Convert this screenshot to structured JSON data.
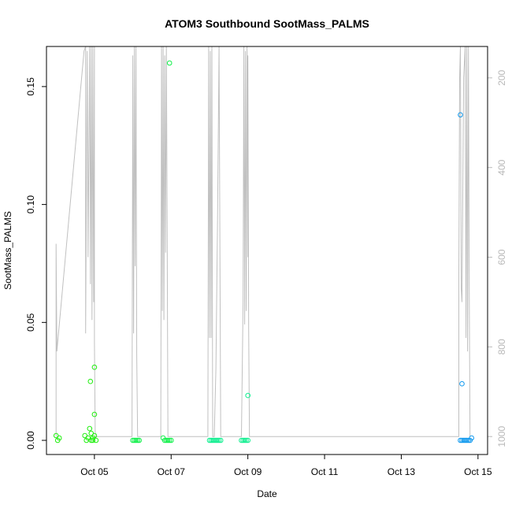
{
  "chart_data": {
    "type": "scatter",
    "title": "ATOM3 Southbound SootMass_PALMS",
    "xlabel": "Date",
    "ylabel": "SootMass_PALMS",
    "xlim": [
      "2017-10-03T18:00",
      "2017-10-15T06:00"
    ],
    "ylim": [
      -0.006,
      0.167
    ],
    "y_ticks": [
      0.0,
      0.05,
      0.1,
      0.15
    ],
    "y_tick_labels": [
      "0.00",
      "0.05",
      "0.10",
      "0.15"
    ],
    "x_ticks": [
      "2017-10-05",
      "2017-10-07",
      "2017-10-09",
      "2017-10-11",
      "2017-10-13",
      "2017-10-15"
    ],
    "x_tick_labels": [
      "Oct 05",
      "Oct 07",
      "Oct 09",
      "Oct 11",
      "Oct 13",
      "Oct 15"
    ],
    "right_axis": {
      "ticks": [
        200,
        400,
        600,
        800,
        1000
      ],
      "lim_top": 130,
      "lim_bottom": 1040,
      "color": "#bbbbbb"
    },
    "grid": false,
    "legend": "none",
    "series": [
      {
        "color": "#22ee11",
        "points": [
          [
            "2017-10-04T00:00",
            0.002
          ],
          [
            "2017-10-04T01:00",
            0.0
          ],
          [
            "2017-10-04T02:00",
            0.001
          ],
          [
            "2017-10-04T18:00",
            0.002
          ],
          [
            "2017-10-04T20:00",
            0.001
          ],
          [
            "2017-10-04T21:00",
            0.005
          ],
          [
            "2017-10-04T21:30",
            0.025
          ],
          [
            "2017-10-04T22:00",
            0.003
          ],
          [
            "2017-10-04T23:00",
            0.001
          ],
          [
            "2017-10-05T00:00",
            0.011
          ],
          [
            "2017-10-05T00:00",
            0.031
          ],
          [
            "2017-10-04T19:00",
            0.0
          ],
          [
            "2017-10-04T22:00",
            0.0
          ],
          [
            "2017-10-04T23:00",
            0.0
          ],
          [
            "2017-10-05T00:00",
            0.002
          ],
          [
            "2017-10-05T01:00",
            0.0
          ]
        ]
      },
      {
        "color": "#11f04a",
        "points": [
          [
            "2017-10-06T00:00",
            0.0
          ],
          [
            "2017-10-06T01:00",
            0.0
          ],
          [
            "2017-10-06T02:00",
            0.0
          ],
          [
            "2017-10-06T03:00",
            0.0
          ],
          [
            "2017-10-06T04:00",
            0.0
          ],
          [
            "2017-10-06T19:00",
            0.001
          ],
          [
            "2017-10-06T20:00",
            0.0
          ],
          [
            "2017-10-06T21:00",
            0.0
          ],
          [
            "2017-10-06T22:00",
            0.0
          ],
          [
            "2017-10-06T23:00",
            0.0
          ],
          [
            "2017-10-07T00:00",
            0.0
          ],
          [
            "2017-10-06T23:00",
            0.16
          ]
        ]
      },
      {
        "color": "#11ee90",
        "points": [
          [
            "2017-10-08T00:00",
            0.0
          ],
          [
            "2017-10-08T01:00",
            0.0
          ],
          [
            "2017-10-08T02:00",
            0.0
          ],
          [
            "2017-10-08T03:00",
            0.0
          ],
          [
            "2017-10-08T04:00",
            0.0
          ],
          [
            "2017-10-08T05:00",
            0.0
          ],
          [
            "2017-10-08T06:00",
            0.0
          ],
          [
            "2017-10-08T07:00",
            0.0
          ],
          [
            "2017-10-08T20:00",
            0.0
          ],
          [
            "2017-10-08T21:00",
            0.0
          ],
          [
            "2017-10-08T22:00",
            0.0
          ],
          [
            "2017-10-08T23:00",
            0.0
          ],
          [
            "2017-10-09T00:00",
            0.0
          ],
          [
            "2017-10-09T00:00",
            0.019
          ]
        ]
      },
      {
        "color": "#1199ee",
        "points": [
          [
            "2017-10-14T13:00",
            0.0
          ],
          [
            "2017-10-14T14:00",
            0.0
          ],
          [
            "2017-10-14T15:00",
            0.0
          ],
          [
            "2017-10-14T16:00",
            0.0
          ],
          [
            "2017-10-14T17:00",
            0.0
          ],
          [
            "2017-10-14T18:00",
            0.0
          ],
          [
            "2017-10-14T19:00",
            0.0
          ],
          [
            "2017-10-14T20:00",
            0.001
          ],
          [
            "2017-10-14T14:00",
            0.024
          ],
          [
            "2017-10-14T13:00",
            0.138
          ]
        ]
      }
    ],
    "altitude_line": {
      "axis": "right",
      "color": "#c0c0c0",
      "points": [
        [
          "2017-10-04T00:00",
          1000
        ],
        [
          "2017-10-04T00:00",
          570
        ],
        [
          "2017-10-04T00:30",
          810
        ],
        [
          "2017-10-04T17:30",
          140
        ],
        [
          "2017-10-04T18:30",
          130
        ],
        [
          "2017-10-04T18:30",
          770
        ],
        [
          "2017-10-04T19:30",
          140
        ],
        [
          "2017-10-04T20:00",
          600
        ],
        [
          "2017-10-04T21:00",
          130
        ],
        [
          "2017-10-04T21:30",
          660
        ],
        [
          "2017-10-04T22:00",
          130
        ],
        [
          "2017-10-04T22:30",
          740
        ],
        [
          "2017-10-04T23:00",
          130
        ],
        [
          "2017-10-04T23:30",
          700
        ],
        [
          "2017-10-05T00:00",
          130
        ],
        [
          "2017-10-05T00:00",
          790
        ],
        [
          "2017-10-05T00:30",
          1000
        ],
        [
          "2017-10-05T23:30",
          1000
        ],
        [
          "2017-10-06T00:00",
          150
        ],
        [
          "2017-10-06T00:30",
          770
        ],
        [
          "2017-10-06T01:00",
          130
        ],
        [
          "2017-10-06T01:30",
          620
        ],
        [
          "2017-10-06T02:00",
          130
        ],
        [
          "2017-10-06T02:30",
          820
        ],
        [
          "2017-10-06T03:00",
          1000
        ],
        [
          "2017-10-06T17:30",
          1000
        ],
        [
          "2017-10-06T18:00",
          130
        ],
        [
          "2017-10-06T18:30",
          720
        ],
        [
          "2017-10-06T19:00",
          130
        ],
        [
          "2017-10-06T19:30",
          740
        ],
        [
          "2017-10-06T20:00",
          150
        ],
        [
          "2017-10-06T20:30",
          590
        ],
        [
          "2017-10-06T21:00",
          130
        ],
        [
          "2017-10-06T21:30",
          530
        ],
        [
          "2017-10-06T22:00",
          1000
        ],
        [
          "2017-10-07T23:00",
          1000
        ],
        [
          "2017-10-07T23:30",
          130
        ],
        [
          "2017-10-08T00:00",
          780
        ],
        [
          "2017-10-08T00:30",
          140
        ],
        [
          "2017-10-08T01:00",
          780
        ],
        [
          "2017-10-08T01:30",
          130
        ],
        [
          "2017-10-08T02:00",
          1000
        ],
        [
          "2017-10-08T03:00",
          1000
        ],
        [
          "2017-10-08T04:00",
          850
        ],
        [
          "2017-10-08T05:00",
          530
        ],
        [
          "2017-10-08T06:00",
          130
        ],
        [
          "2017-10-08T07:00",
          1000
        ],
        [
          "2017-10-08T20:00",
          1000
        ],
        [
          "2017-10-08T21:00",
          700
        ],
        [
          "2017-10-08T21:30",
          130
        ],
        [
          "2017-10-08T22:00",
          750
        ],
        [
          "2017-10-08T22:30",
          140
        ],
        [
          "2017-10-08T23:00",
          720
        ],
        [
          "2017-10-08T23:30",
          130
        ],
        [
          "2017-10-09T00:00",
          600
        ],
        [
          "2017-10-09T00:00",
          150
        ],
        [
          "2017-10-09T00:30",
          760
        ],
        [
          "2017-10-09T01:00",
          1000
        ],
        [
          "2017-10-14T12:00",
          1000
        ],
        [
          "2017-10-14T12:00",
          640
        ],
        [
          "2017-10-14T12:30",
          200
        ],
        [
          "2017-10-14T13:00",
          130
        ],
        [
          "2017-10-14T13:30",
          670
        ],
        [
          "2017-10-14T14:00",
          700
        ],
        [
          "2017-10-14T15:00",
          200
        ],
        [
          "2017-10-14T16:00",
          130
        ],
        [
          "2017-10-14T16:30",
          780
        ],
        [
          "2017-10-14T17:00",
          130
        ],
        [
          "2017-10-14T17:30",
          810
        ],
        [
          "2017-10-14T18:00",
          130
        ],
        [
          "2017-10-14T18:30",
          660
        ],
        [
          "2017-10-14T19:00",
          1000
        ]
      ]
    }
  }
}
